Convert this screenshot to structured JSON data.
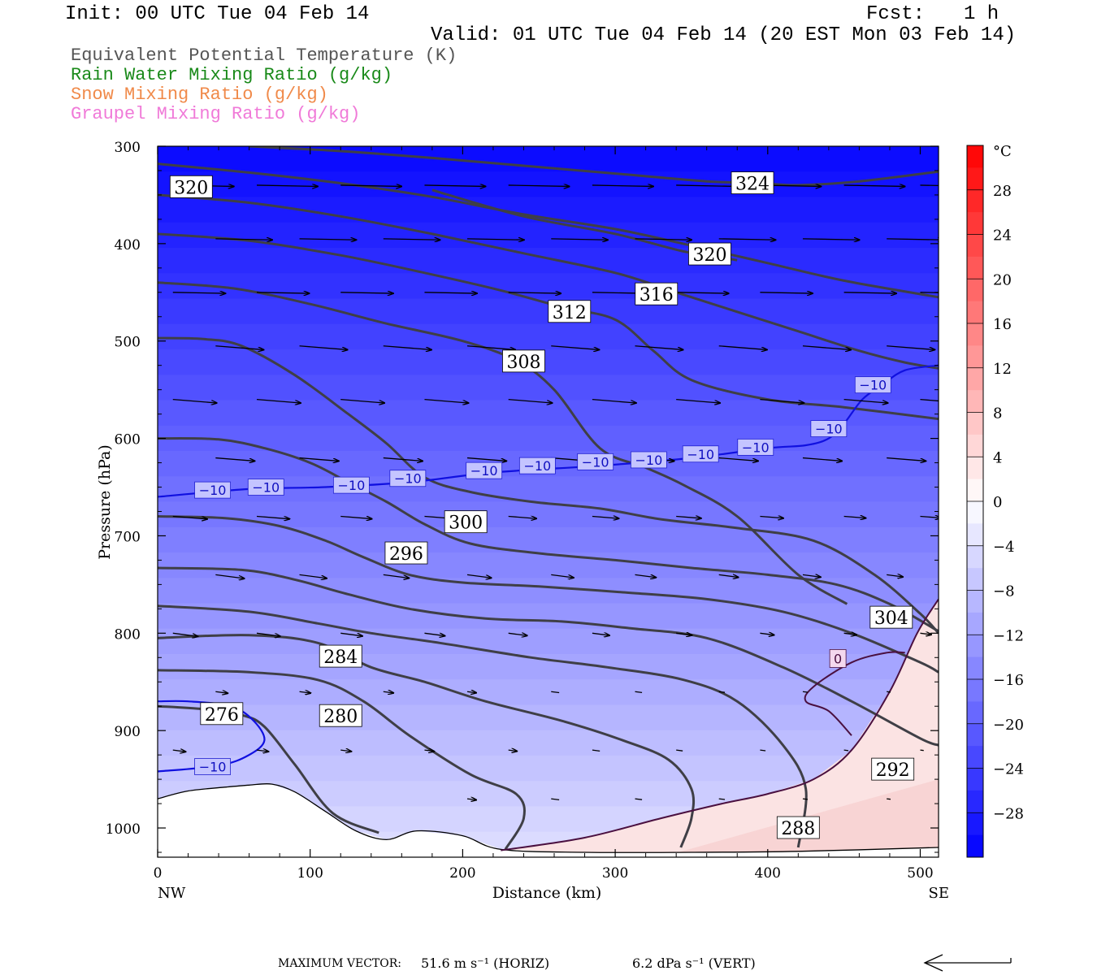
{
  "header": {
    "init": "Init: 00 UTC Tue 04 Feb 14",
    "fcst_label": "Fcst:",
    "fcst_value": "1 h",
    "valid": "Valid: 01 UTC Tue 04 Feb 14 (20 EST Mon 03 Feb 14)"
  },
  "legend": [
    {
      "label": "Equivalent Potential Temperature (K)",
      "color": "#555555"
    },
    {
      "label": "Rain Water Mixing Ratio (g/kg)",
      "color": "#1a8a1a"
    },
    {
      "label": "Snow Mixing Ratio (g/kg)",
      "color": "#f08a4a"
    },
    {
      "label": "Graupel Mixing Ratio (g/kg)",
      "color": "#f07ad8"
    }
  ],
  "chart_data": {
    "type": "contour",
    "xlabel": "Distance (km)",
    "ylabel": "Pressure (hPa)",
    "xlim": [
      0,
      512
    ],
    "ylim": [
      1030,
      300
    ],
    "x_ticks": [
      0,
      100,
      200,
      300,
      400,
      500
    ],
    "y_ticks": [
      300,
      400,
      500,
      600,
      700,
      800,
      900,
      1000
    ],
    "x_end_labels": {
      "left": "NW",
      "right": "SE"
    },
    "colorbar": {
      "unit": "°C",
      "labels": [
        28,
        24,
        20,
        16,
        12,
        8,
        4,
        0,
        -4,
        -8,
        -12,
        -16,
        -20,
        -24,
        -28
      ],
      "range": [
        -32,
        32
      ]
    },
    "theta_e_contours": [
      {
        "value": 276,
        "points": [
          [
            0,
            875
          ],
          [
            30,
            878
          ],
          [
            55,
            884
          ],
          [
            70,
            896
          ],
          [
            90,
            935
          ],
          [
            115,
            985
          ],
          [
            145,
            1005
          ]
        ],
        "label_at": [
          42,
          883
        ]
      },
      {
        "value": 280,
        "points": [
          [
            0,
            838
          ],
          [
            60,
            840
          ],
          [
            105,
            848
          ],
          [
            135,
            870
          ],
          [
            165,
            905
          ],
          [
            205,
            945
          ],
          [
            235,
            965
          ],
          [
            240,
            990
          ],
          [
            228,
            1022
          ]
        ],
        "label_at": [
          120,
          885
        ]
      },
      {
        "value": 284,
        "points": [
          [
            0,
            805
          ],
          [
            60,
            802
          ],
          [
            105,
            810
          ],
          [
            140,
            835
          ],
          [
            175,
            850
          ],
          [
            215,
            870
          ],
          [
            265,
            890
          ],
          [
            305,
            910
          ],
          [
            335,
            930
          ],
          [
            350,
            960
          ],
          [
            350,
            990
          ],
          [
            343,
            1020
          ]
        ],
        "label_at": [
          120,
          824
        ]
      },
      {
        "value": 288,
        "points": [
          [
            0,
            772
          ],
          [
            60,
            778
          ],
          [
            105,
            790
          ],
          [
            140,
            800
          ],
          [
            185,
            810
          ],
          [
            245,
            825
          ],
          [
            295,
            835
          ],
          [
            345,
            848
          ],
          [
            380,
            870
          ],
          [
            410,
            915
          ],
          [
            425,
            960
          ],
          [
            420,
            1020
          ]
        ],
        "label_at": [
          420,
          1000
        ]
      },
      {
        "value": 292,
        "points": [
          [
            0,
            733
          ],
          [
            55,
            735
          ],
          [
            90,
            745
          ],
          [
            125,
            760
          ],
          [
            165,
            775
          ],
          [
            215,
            785
          ],
          [
            265,
            788
          ],
          [
            310,
            795
          ],
          [
            360,
            805
          ],
          [
            410,
            835
          ],
          [
            455,
            870
          ],
          [
            500,
            908
          ],
          [
            512,
            915
          ]
        ],
        "label_at": [
          482,
          940
        ]
      },
      {
        "value": 296,
        "points": [
          [
            0,
            680
          ],
          [
            45,
            682
          ],
          [
            80,
            690
          ],
          [
            110,
            705
          ],
          [
            135,
            722
          ],
          [
            165,
            740
          ],
          [
            200,
            748
          ],
          [
            250,
            752
          ],
          [
            305,
            758
          ],
          [
            360,
            765
          ],
          [
            410,
            778
          ],
          [
            455,
            800
          ],
          [
            500,
            830
          ],
          [
            512,
            840
          ]
        ],
        "label_at": [
          163,
          718
        ]
      },
      {
        "value": 300,
        "points": [
          [
            0,
            600
          ],
          [
            40,
            601
          ],
          [
            70,
            610
          ],
          [
            100,
            625
          ],
          [
            125,
            645
          ],
          [
            150,
            665
          ],
          [
            175,
            688
          ],
          [
            205,
            708
          ],
          [
            250,
            718
          ],
          [
            300,
            725
          ],
          [
            350,
            733
          ],
          [
            400,
            740
          ],
          [
            445,
            750
          ],
          [
            480,
            770
          ],
          [
            512,
            798
          ]
        ],
        "label_at": [
          202,
          686
        ]
      },
      {
        "value": 304,
        "points": [
          [
            0,
            497
          ],
          [
            30,
            498
          ],
          [
            55,
            505
          ],
          [
            90,
            535
          ],
          [
            125,
            575
          ],
          [
            150,
            605
          ],
          [
            175,
            640
          ],
          [
            205,
            655
          ],
          [
            245,
            665
          ],
          [
            290,
            672
          ],
          [
            330,
            683
          ],
          [
            380,
            692
          ],
          [
            430,
            705
          ],
          [
            470,
            740
          ],
          [
            500,
            780
          ],
          [
            512,
            800
          ]
        ],
        "label_at": [
          481,
          784
        ]
      },
      {
        "value": 308,
        "points": [
          [
            0,
            440
          ],
          [
            50,
            446
          ],
          [
            100,
            462
          ],
          [
            150,
            482
          ],
          [
            200,
            500
          ],
          [
            235,
            520
          ],
          [
            260,
            550
          ],
          [
            290,
            610
          ],
          [
            320,
            630
          ],
          [
            345,
            648
          ],
          [
            380,
            680
          ],
          [
            420,
            740
          ],
          [
            452,
            770
          ]
        ],
        "label_at": [
          240,
          521
        ]
      },
      {
        "value": 312,
        "points": [
          [
            0,
            390
          ],
          [
            60,
            397
          ],
          [
            120,
            412
          ],
          [
            175,
            430
          ],
          [
            225,
            448
          ],
          [
            265,
            465
          ],
          [
            300,
            478
          ],
          [
            325,
            510
          ],
          [
            350,
            540
          ],
          [
            400,
            560
          ],
          [
            450,
            568
          ],
          [
            512,
            580
          ]
        ],
        "label_at": [
          270,
          470
        ]
      },
      {
        "value": 316,
        "points": [
          [
            0,
            350
          ],
          [
            60,
            358
          ],
          [
            120,
            372
          ],
          [
            180,
            390
          ],
          [
            240,
            410
          ],
          [
            300,
            430
          ],
          [
            340,
            450
          ],
          [
            380,
            470
          ],
          [
            420,
            490
          ],
          [
            460,
            510
          ],
          [
            490,
            522
          ],
          [
            512,
            528
          ]
        ],
        "label_at": [
          327,
          452
        ]
      },
      {
        "value": 320,
        "points": [
          [
            0,
            318
          ],
          [
            60,
            327
          ],
          [
            120,
            338
          ],
          [
            180,
            352
          ],
          [
            240,
            370
          ],
          [
            300,
            385
          ],
          [
            350,
            402
          ],
          [
            400,
            420
          ],
          [
            450,
            438
          ],
          [
            512,
            455
          ]
        ],
        "label_at": [
          22,
          342
        ]
      },
      {
        "value": 320,
        "points": [
          [
            180,
            345
          ],
          [
            240,
            372
          ],
          [
            300,
            390
          ],
          [
            345,
            408
          ],
          [
            380,
            417
          ]
        ],
        "label_at": [
          362,
          411
        ]
      },
      {
        "value": 324,
        "points": [
          [
            60,
            300
          ],
          [
            120,
            305
          ],
          [
            180,
            312
          ],
          [
            240,
            320
          ],
          [
            300,
            328
          ],
          [
            360,
            336
          ],
          [
            395,
            338
          ],
          [
            420,
            340
          ],
          [
            460,
            336
          ],
          [
            512,
            326
          ]
        ],
        "label_at": [
          390,
          338
        ]
      }
    ],
    "isotherm_minus10": {
      "value": -10,
      "points": [
        [
          0,
          660
        ],
        [
          60,
          652
        ],
        [
          110,
          650
        ],
        [
          165,
          645
        ],
        [
          220,
          635
        ],
        [
          290,
          628
        ],
        [
          350,
          620
        ],
        [
          400,
          610
        ],
        [
          425,
          607
        ],
        [
          440,
          600
        ],
        [
          450,
          585
        ],
        [
          462,
          560
        ],
        [
          475,
          545
        ],
        [
          490,
          530
        ],
        [
          512,
          525
        ]
      ],
      "labels": [
        [
          36,
          653
        ],
        [
          71,
          650
        ],
        [
          127,
          648
        ],
        [
          164,
          641
        ],
        [
          214,
          633
        ],
        [
          249,
          628
        ],
        [
          287,
          624
        ],
        [
          322,
          622
        ],
        [
          356,
          616
        ],
        [
          392,
          609
        ],
        [
          440,
          590
        ],
        [
          469,
          545
        ]
      ]
    },
    "isotherm_minus10_low": {
      "points": [
        [
          0,
          942
        ],
        [
          40,
          936
        ],
        [
          60,
          925
        ],
        [
          70,
          910
        ],
        [
          63,
          890
        ],
        [
          48,
          875
        ],
        [
          20,
          870
        ],
        [
          0,
          870
        ]
      ],
      "labels": [
        [
          36,
          937
        ]
      ]
    },
    "isotherm_zero": {
      "value": 0,
      "points": [
        [
          225,
          1023
        ],
        [
          280,
          1010
        ],
        [
          330,
          990
        ],
        [
          370,
          975
        ],
        [
          400,
          965
        ],
        [
          430,
          950
        ],
        [
          455,
          920
        ],
        [
          480,
          860
        ],
        [
          498,
          800
        ],
        [
          512,
          765
        ]
      ],
      "branch": [
        [
          490,
          820
        ],
        [
          478,
          820
        ],
        [
          455,
          830
        ],
        [
          430,
          855
        ],
        [
          425,
          870
        ],
        [
          440,
          880
        ],
        [
          455,
          905
        ]
      ],
      "labels": [
        [
          446,
          826
        ]
      ]
    },
    "terrain": [
      [
        0,
        970
      ],
      [
        20,
        962
      ],
      [
        45,
        958
      ],
      [
        60,
        956
      ],
      [
        75,
        955
      ],
      [
        90,
        963
      ],
      [
        110,
        983
      ],
      [
        130,
        1003
      ],
      [
        150,
        1012
      ],
      [
        170,
        1003
      ],
      [
        200,
        1008
      ],
      [
        225,
        1022
      ],
      [
        280,
        1025
      ],
      [
        350,
        1025
      ],
      [
        420,
        1024
      ],
      [
        512,
        1020
      ]
    ],
    "wind_vectors_note": "barbs/arrows plotted on grid",
    "footer": {
      "max_vector_label": "MAXIMUM VECTOR:",
      "horiz": "51.6 m s⁻¹ (HORIZ)",
      "vert": "6.2 dPa s⁻¹ (VERT)"
    }
  }
}
